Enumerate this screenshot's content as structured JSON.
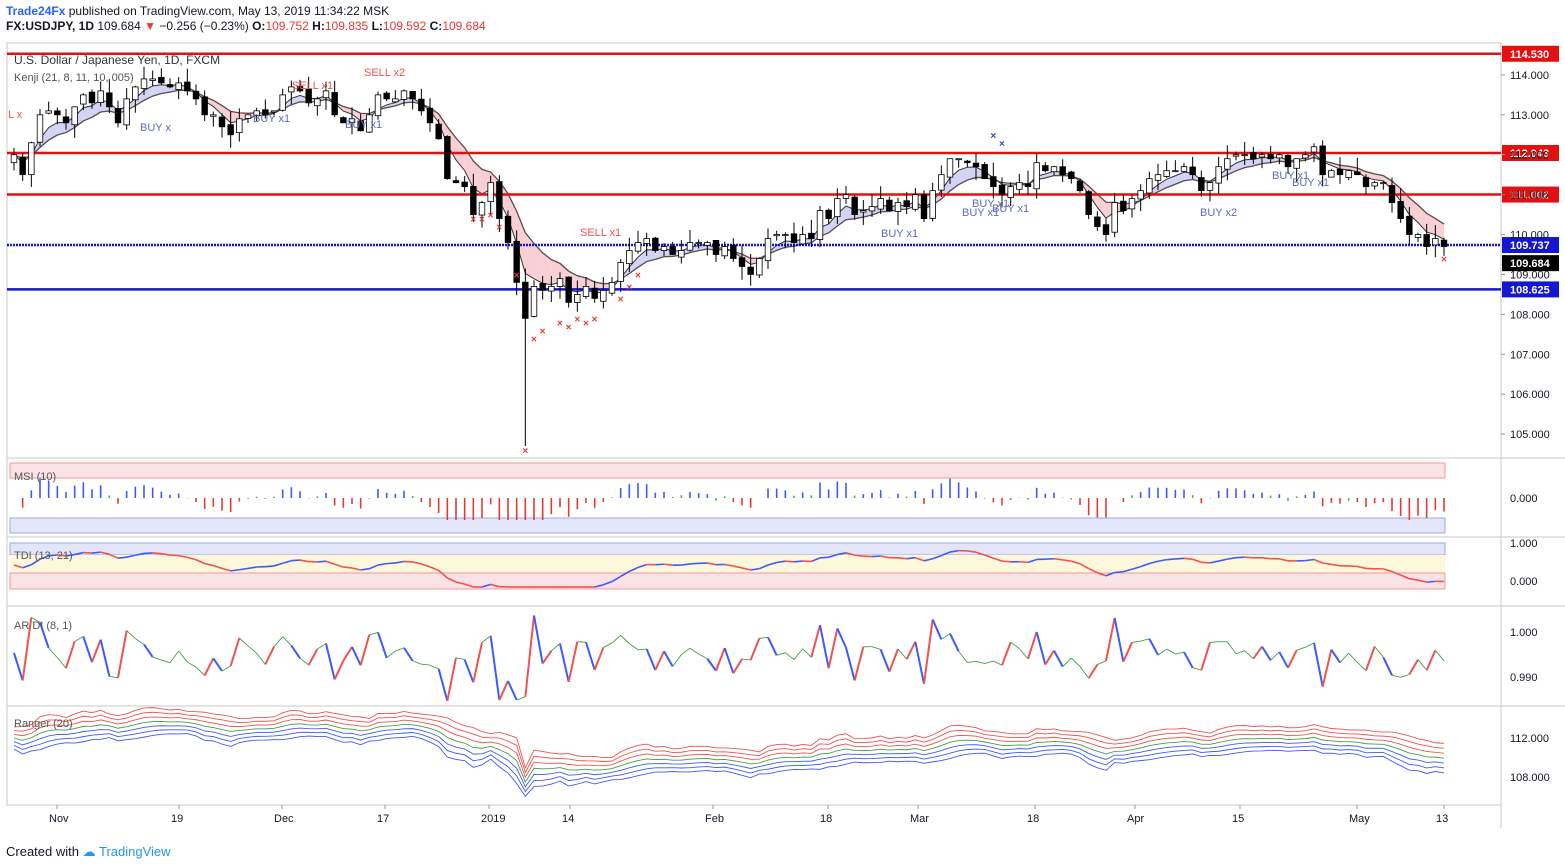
{
  "header": {
    "brand": "Trade24Fx",
    "published": "published on TradingView.com, May 13, 2019 11:34:22 MSK",
    "symbol": "FX:USDJPY, 1D",
    "price": "109.684",
    "change": "−0.256 (−0.23%)",
    "o_label": "O:",
    "o": "109.752",
    "h_label": "H:",
    "h": "109.835",
    "l_label": "L:",
    "l": "109.592",
    "c_label": "C:",
    "c": "109.684"
  },
  "main": {
    "title": "U.S. Dollar / Japanese Yen, 1D, FXCM",
    "indicator": "Kenji (21, 8, 11, 10, 005)"
  },
  "panes": {
    "msi": "MSI (10)",
    "tdi": "TDI (13, 21)",
    "ardi": "AR DI (8, 1)",
    "ranger": "Ranger (20)"
  },
  "signals": [
    {
      "text": "L x",
      "color": "#ef5350"
    },
    {
      "text": "BUY x",
      "color": "#5c6bc0"
    },
    {
      "text": "SELL x1",
      "color": "#ef5350"
    },
    {
      "text": "BUY x1",
      "color": "#5c6bc0"
    },
    {
      "text": "BUY x1",
      "color": "#5c6bc0"
    },
    {
      "text": "SELL x2",
      "color": "#ef5350"
    },
    {
      "text": "SELL x1",
      "color": "#ef5350"
    },
    {
      "text": "BUY x1",
      "color": "#5c6bc0"
    },
    {
      "text": "BUY x1",
      "color": "#5c6bc0"
    },
    {
      "text": "BUY x1",
      "color": "#5c6bc0"
    },
    {
      "text": "BUY x1",
      "color": "#5c6bc0"
    },
    {
      "text": "BUY x2",
      "color": "#5c6bc0"
    },
    {
      "text": "BUY x1",
      "color": "#5c6bc0"
    },
    {
      "text": "BUY x1",
      "color": "#5c6bc0"
    }
  ],
  "footer": {
    "created": "Created with",
    "tv": "TradingView"
  },
  "colors": {
    "up": "#ffffff",
    "down": "#000000",
    "resistance": "#e31010",
    "support": "#1515d6",
    "cloud_up": "#c9cdf2",
    "cloud_down": "#f6c7cd"
  },
  "chart_data": {
    "type": "candlestick",
    "x_tick_labels": [
      "Nov",
      "19",
      "Dec",
      "17",
      "2019",
      "14",
      "Feb",
      "18",
      "Mar",
      "18",
      "Apr",
      "15",
      "May",
      "13"
    ],
    "y_ticks": [
      105,
      106,
      107,
      108,
      109,
      110,
      111,
      112,
      113,
      114
    ],
    "y_range": [
      104.4,
      114.8
    ],
    "horizontal_lines": [
      {
        "value": 114.53,
        "label": "114.530",
        "color": "#e31010"
      },
      {
        "value": 112.043,
        "label": "112.043",
        "color": "#e31010"
      },
      {
        "value": 111.002,
        "label": "111.002",
        "color": "#e31010"
      },
      {
        "value": 109.737,
        "label": "109.737",
        "color": "#1515d6"
      },
      {
        "value": 108.625,
        "label": "108.625",
        "color": "#1515d6"
      }
    ],
    "last_price": {
      "value": 109.684,
      "label": "109.684"
    },
    "close": [
      112.0,
      111.5,
      112.3,
      113.0,
      113.1,
      113.0,
      112.8,
      113.2,
      113.5,
      113.3,
      113.6,
      113.2,
      112.8,
      113.4,
      113.7,
      113.9,
      113.9,
      113.8,
      113.7,
      113.8,
      113.6,
      113.4,
      113.0,
      113.0,
      112.7,
      112.5,
      112.9,
      113.0,
      113.1,
      113.0,
      113.1,
      113.5,
      113.7,
      113.6,
      113.3,
      113.4,
      113.6,
      113.0,
      112.8,
      112.9,
      112.6,
      113.0,
      113.5,
      113.4,
      113.4,
      113.6,
      113.4,
      113.1,
      112.8,
      112.4,
      111.4,
      111.3,
      111.2,
      110.5,
      110.8,
      111.3,
      110.4,
      109.8,
      108.8,
      107.9,
      108.7,
      108.6,
      108.7,
      108.9,
      108.3,
      108.5,
      108.7,
      108.4,
      108.6,
      108.8,
      109.3,
      109.6,
      109.8,
      109.9,
      109.6,
      109.7,
      109.5,
      109.6,
      109.8,
      109.8,
      109.8,
      109.5,
      109.7,
      109.4,
      109.2,
      109.0,
      109.4,
      109.9,
      110.0,
      110.0,
      109.8,
      110.0,
      109.9,
      110.6,
      110.4,
      110.9,
      111.0,
      110.5,
      110.6,
      110.7,
      110.9,
      110.6,
      110.8,
      110.7,
      111.0,
      110.4,
      111.1,
      111.5,
      111.9,
      111.9,
      111.8,
      111.7,
      111.4,
      111.2,
      111.0,
      111.2,
      111.3,
      111.2,
      111.8,
      111.6,
      111.7,
      111.5,
      111.4,
      111.1,
      110.5,
      110.2,
      110.0,
      110.8,
      110.6,
      110.9,
      111.1,
      111.4,
      111.5,
      111.6,
      111.6,
      111.7,
      111.5,
      111.1,
      111.3,
      111.7,
      111.9,
      112.0,
      112.0,
      111.9,
      112.0,
      111.9,
      112.0,
      111.7,
      111.9,
      112.0,
      112.2,
      111.5,
      111.6,
      111.5,
      111.6,
      111.5,
      111.2,
      111.3,
      111.3,
      110.8,
      110.4,
      110.0,
      110.0,
      109.7,
      109.9,
      109.7
    ]
  }
}
